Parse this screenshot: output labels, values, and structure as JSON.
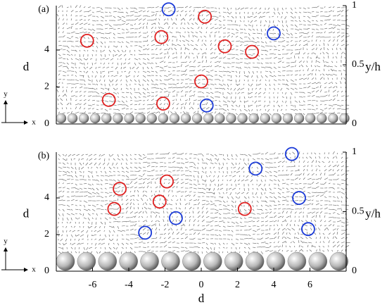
{
  "chart_data": [
    {
      "type": "scatter",
      "panel_label": "(a)",
      "ylabel": "d",
      "y2label": "y/h",
      "inset_x_label": "x",
      "inset_y_label": "y",
      "xlim": [
        -8,
        8
      ],
      "ylim": [
        0,
        6.4
      ],
      "yticks": [
        0,
        2,
        4
      ],
      "y2lim": [
        0,
        1
      ],
      "y2ticks": [
        0,
        0.5,
        1
      ],
      "series": [
        {
          "color": "#e02020",
          "x": [
            -6.3,
            -2.2,
            0.2,
            1.3,
            2.8,
            0.0,
            -5.1,
            -2.1
          ],
          "values": [
            4.5,
            4.7,
            5.8,
            4.2,
            3.9,
            2.3,
            1.3,
            1.1
          ]
        },
        {
          "color": "#1a3ad8",
          "x": [
            -1.8,
            4.0,
            0.3
          ],
          "values": [
            6.2,
            4.9,
            1.0
          ]
        }
      ]
    },
    {
      "type": "scatter",
      "panel_label": "(b)",
      "ylabel": "d",
      "y2label": "y/h",
      "xlabel": "d",
      "inset_x_label": "x",
      "inset_y_label": "y",
      "xlim": [
        -8,
        8
      ],
      "xticks": [
        -6,
        -4,
        -2,
        0,
        2,
        4,
        6
      ],
      "ylim": [
        0,
        6.5
      ],
      "yticks": [
        0,
        2,
        4
      ],
      "y2lim": [
        0,
        1
      ],
      "y2ticks": [
        0,
        0.5,
        1
      ],
      "series": [
        {
          "color": "#e02020",
          "x": [
            -4.5,
            -1.9,
            -4.8,
            -2.3,
            2.4
          ],
          "values": [
            4.5,
            4.9,
            3.4,
            3.8,
            3.4
          ]
        },
        {
          "color": "#1a3ad8",
          "x": [
            5.0,
            3.0,
            5.4,
            -1.4,
            -3.1,
            5.9
          ],
          "values": [
            6.4,
            5.6,
            4.0,
            2.9,
            2.1,
            2.3
          ]
        }
      ]
    }
  ]
}
